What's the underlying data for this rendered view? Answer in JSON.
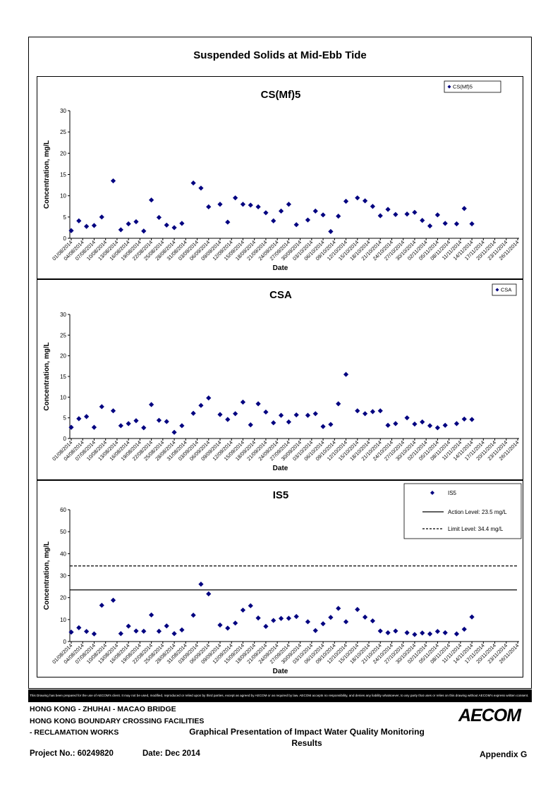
{
  "page": {
    "main_title": "Suspended Solids at Mid-Ebb Tide",
    "disclaimer": "This Drawing has been prepared for the use of AECOM's client. It may not be used, modified, reproduced or relied upon by third parties, except as agreed by AECOM or as required by law. AECOM accepts no responsibility, and denies any liability whatsoever, to any party that uses or relies on this drawing without AECOM's express written consent.",
    "footer": {
      "line1": "HONG KONG - ZHUHAI - MACAO BRIDGE",
      "line2": "HONG KONG BOUNDARY CROSSING FACILITIES",
      "line3": "- RECLAMATION WORKS",
      "title": "Graphical Presentation of Impact Water Quality Monitoring Results",
      "project": "Project No.: 60249820",
      "date": "Date: Dec 2014",
      "appendix": "Appendix G",
      "logo": "AECOM"
    }
  },
  "chart_data": [
    {
      "type": "scatter",
      "title": "CS(Mf)5",
      "xlabel": "Date",
      "ylabel": "Concentration, mg/L",
      "ylim": [
        0,
        30
      ],
      "yticks": [
        0,
        5,
        10,
        15,
        20,
        25,
        30
      ],
      "x_tick_labels": [
        "01/08/2014",
        "04/08/2014",
        "07/08/2014",
        "10/08/2014",
        "13/08/2014",
        "16/08/2014",
        "19/08/2014",
        "22/08/2014",
        "25/08/2014",
        "28/08/2014",
        "31/08/2014",
        "03/09/2014",
        "06/09/2014",
        "09/09/2014",
        "12/09/2014",
        "15/09/2014",
        "18/09/2014",
        "21/09/2014",
        "24/09/2014",
        "27/09/2014",
        "30/09/2014",
        "03/10/2014",
        "06/10/2014",
        "09/10/2014",
        "12/10/2014",
        "15/10/2014",
        "18/10/2014",
        "21/10/2014",
        "24/10/2014",
        "27/10/2014",
        "30/10/2014",
        "02/11/2014",
        "05/11/2014",
        "08/11/2014",
        "11/11/2014",
        "14/11/2014",
        "17/11/2014",
        "20/11/2014",
        "23/11/2014",
        "26/11/2014"
      ],
      "color": "#000080",
      "legend_position": "top-right",
      "series": [
        {
          "name": "CS(Mf)5",
          "marker": "diamond",
          "points": [
            [
              "01/08/2014",
              1.8
            ],
            [
              "03/08/2014",
              4.1
            ],
            [
              "05/08/2014",
              2.8
            ],
            [
              "07/08/2014",
              3.0
            ],
            [
              "09/08/2014",
              5.0
            ],
            [
              "12/08/2014",
              13.5
            ],
            [
              "14/08/2014",
              2.0
            ],
            [
              "16/08/2014",
              3.4
            ],
            [
              "18/08/2014",
              3.9
            ],
            [
              "20/08/2014",
              1.7
            ],
            [
              "22/08/2014",
              9.0
            ],
            [
              "24/08/2014",
              4.9
            ],
            [
              "26/08/2014",
              3.1
            ],
            [
              "28/08/2014",
              2.5
            ],
            [
              "30/08/2014",
              3.5
            ],
            [
              "02/09/2014",
              13.0
            ],
            [
              "04/09/2014",
              11.8
            ],
            [
              "06/09/2014",
              7.4
            ],
            [
              "09/09/2014",
              8.0
            ],
            [
              "11/09/2014",
              3.8
            ],
            [
              "13/09/2014",
              9.5
            ],
            [
              "15/09/2014",
              8.0
            ],
            [
              "17/09/2014",
              7.8
            ],
            [
              "19/09/2014",
              7.4
            ],
            [
              "21/09/2014",
              6.0
            ],
            [
              "23/09/2014",
              4.1
            ],
            [
              "25/09/2014",
              6.4
            ],
            [
              "27/09/2014",
              8.0
            ],
            [
              "29/09/2014",
              3.2
            ],
            [
              "02/10/2014",
              4.3
            ],
            [
              "04/10/2014",
              6.4
            ],
            [
              "06/10/2014",
              5.5
            ],
            [
              "08/10/2014",
              1.6
            ],
            [
              "10/10/2014",
              5.2
            ],
            [
              "12/10/2014",
              8.7
            ],
            [
              "15/10/2014",
              9.5
            ],
            [
              "17/10/2014",
              8.8
            ],
            [
              "19/10/2014",
              7.5
            ],
            [
              "21/10/2014",
              5.3
            ],
            [
              "23/10/2014",
              6.8
            ],
            [
              "25/10/2014",
              5.6
            ],
            [
              "28/10/2014",
              5.7
            ],
            [
              "30/10/2014",
              6.1
            ],
            [
              "01/11/2014",
              4.2
            ],
            [
              "03/11/2014",
              2.9
            ],
            [
              "05/11/2014",
              5.5
            ],
            [
              "07/11/2014",
              3.5
            ],
            [
              "10/11/2014",
              3.4
            ],
            [
              "12/11/2014",
              7.0
            ],
            [
              "14/11/2014",
              3.4
            ]
          ]
        }
      ]
    },
    {
      "type": "scatter",
      "title": "CSA",
      "xlabel": "Date",
      "ylabel": "Concentration, mg/L",
      "ylim": [
        0,
        30
      ],
      "yticks": [
        0,
        5,
        10,
        15,
        20,
        25,
        30
      ],
      "x_tick_labels": [
        "01/08/2014",
        "04/08/2014",
        "07/08/2014",
        "10/08/2014",
        "13/08/2014",
        "16/08/2014",
        "19/08/2014",
        "22/08/2014",
        "25/08/2014",
        "28/08/2014",
        "31/08/2014",
        "03/09/2014",
        "06/09/2014",
        "09/09/2014",
        "12/09/2014",
        "15/09/2014",
        "18/09/2014",
        "21/09/2014",
        "24/09/2014",
        "27/09/2014",
        "30/09/2014",
        "03/10/2014",
        "06/10/2014",
        "09/10/2014",
        "12/10/2014",
        "15/10/2014",
        "18/10/2014",
        "21/10/2014",
        "24/10/2014",
        "27/10/2014",
        "30/10/2014",
        "02/11/2014",
        "05/11/2014",
        "08/11/2014",
        "11/11/2014",
        "14/11/2014",
        "17/11/2014",
        "20/11/2014",
        "23/11/2014",
        "26/11/2014"
      ],
      "color": "#000080",
      "legend_position": "top-right",
      "series": [
        {
          "name": "CSA",
          "marker": "diamond",
          "points": [
            [
              "01/08/2014",
              2.7
            ],
            [
              "03/08/2014",
              4.8
            ],
            [
              "05/08/2014",
              5.3
            ],
            [
              "07/08/2014",
              2.7
            ],
            [
              "09/08/2014",
              7.7
            ],
            [
              "12/08/2014",
              6.7
            ],
            [
              "14/08/2014",
              3.1
            ],
            [
              "16/08/2014",
              3.6
            ],
            [
              "18/08/2014",
              4.3
            ],
            [
              "20/08/2014",
              2.6
            ],
            [
              "22/08/2014",
              8.2
            ],
            [
              "24/08/2014",
              4.4
            ],
            [
              "26/08/2014",
              4.1
            ],
            [
              "28/08/2014",
              1.5
            ],
            [
              "30/08/2014",
              3.1
            ],
            [
              "02/09/2014",
              6.1
            ],
            [
              "04/09/2014",
              8.0
            ],
            [
              "06/09/2014",
              9.8
            ],
            [
              "09/09/2014",
              5.8
            ],
            [
              "11/09/2014",
              4.6
            ],
            [
              "13/09/2014",
              6.0
            ],
            [
              "15/09/2014",
              8.8
            ],
            [
              "17/09/2014",
              3.3
            ],
            [
              "19/09/2014",
              8.4
            ],
            [
              "21/09/2014",
              6.4
            ],
            [
              "23/09/2014",
              3.8
            ],
            [
              "25/09/2014",
              5.6
            ],
            [
              "27/09/2014",
              4.0
            ],
            [
              "29/09/2014",
              5.7
            ],
            [
              "02/10/2014",
              5.6
            ],
            [
              "04/10/2014",
              6.0
            ],
            [
              "06/10/2014",
              2.9
            ],
            [
              "08/10/2014",
              3.4
            ],
            [
              "10/10/2014",
              8.4
            ],
            [
              "12/10/2014",
              15.5
            ],
            [
              "15/10/2014",
              6.7
            ],
            [
              "17/10/2014",
              6.0
            ],
            [
              "19/10/2014",
              6.5
            ],
            [
              "21/10/2014",
              6.7
            ],
            [
              "23/10/2014",
              3.2
            ],
            [
              "25/10/2014",
              3.6
            ],
            [
              "28/10/2014",
              5.0
            ],
            [
              "30/10/2014",
              3.5
            ],
            [
              "01/11/2014",
              4.0
            ],
            [
              "03/11/2014",
              3.1
            ],
            [
              "05/11/2014",
              2.6
            ],
            [
              "07/11/2014",
              3.2
            ],
            [
              "10/11/2014",
              3.6
            ],
            [
              "12/11/2014",
              4.7
            ],
            [
              "14/11/2014",
              4.6
            ]
          ]
        }
      ]
    },
    {
      "type": "scatter",
      "title": "IS5",
      "xlabel": "Date",
      "ylabel": "Concentration, mg/L",
      "ylim": [
        0,
        60
      ],
      "yticks": [
        0,
        10,
        20,
        30,
        40,
        50,
        60
      ],
      "x_tick_labels": [
        "01/08/2014",
        "04/08/2014",
        "07/08/2014",
        "10/08/2014",
        "13/08/2014",
        "16/08/2014",
        "19/08/2014",
        "22/08/2014",
        "25/08/2014",
        "28/08/2014",
        "31/08/2014",
        "03/09/2014",
        "06/09/2014",
        "09/09/2014",
        "12/09/2014",
        "15/09/2014",
        "18/09/2014",
        "21/09/2014",
        "24/09/2014",
        "27/09/2014",
        "30/09/2014",
        "03/10/2014",
        "06/10/2014",
        "09/10/2014",
        "12/10/2014",
        "15/10/2014",
        "18/10/2014",
        "21/10/2014",
        "24/10/2014",
        "27/10/2014",
        "30/10/2014",
        "02/11/2014",
        "05/11/2014",
        "08/11/2014",
        "11/11/2014",
        "14/11/2014",
        "17/11/2014",
        "20/11/2014",
        "23/11/2014",
        "26/11/2014"
      ],
      "color": "#000080",
      "legend_position": "top-right",
      "reference_lines": [
        {
          "label": "Action Level: 23.5 mg/L",
          "value": 23.5,
          "style": "solid"
        },
        {
          "label": "Limit Level: 34.4 mg/L",
          "value": 34.4,
          "style": "dashed"
        }
      ],
      "series": [
        {
          "name": "IS5",
          "marker": "diamond",
          "points": [
            [
              "01/08/2014",
              4.3
            ],
            [
              "03/08/2014",
              6.3
            ],
            [
              "05/08/2014",
              4.6
            ],
            [
              "07/08/2014",
              3.5
            ],
            [
              "09/08/2014",
              16.5
            ],
            [
              "12/08/2014",
              18.8
            ],
            [
              "14/08/2014",
              3.6
            ],
            [
              "16/08/2014",
              7.0
            ],
            [
              "18/08/2014",
              4.8
            ],
            [
              "20/08/2014",
              4.7
            ],
            [
              "22/08/2014",
              12.1
            ],
            [
              "24/08/2014",
              4.7
            ],
            [
              "26/08/2014",
              7.1
            ],
            [
              "28/08/2014",
              3.6
            ],
            [
              "30/08/2014",
              5.3
            ],
            [
              "02/09/2014",
              12.0
            ],
            [
              "04/09/2014",
              26.1
            ],
            [
              "06/09/2014",
              21.7
            ],
            [
              "09/09/2014",
              7.5
            ],
            [
              "11/09/2014",
              6.1
            ],
            [
              "13/09/2014",
              8.4
            ],
            [
              "15/09/2014",
              14.3
            ],
            [
              "17/09/2014",
              16.3
            ],
            [
              "19/09/2014",
              10.7
            ],
            [
              "21/09/2014",
              6.9
            ],
            [
              "23/09/2014",
              9.6
            ],
            [
              "25/09/2014",
              10.5
            ],
            [
              "27/09/2014",
              10.6
            ],
            [
              "29/09/2014",
              11.4
            ],
            [
              "02/10/2014",
              9.0
            ],
            [
              "04/10/2014",
              5.0
            ],
            [
              "06/10/2014",
              8.1
            ],
            [
              "08/10/2014",
              11.0
            ],
            [
              "10/10/2014",
              15.1
            ],
            [
              "12/10/2014",
              9.0
            ],
            [
              "15/10/2014",
              14.6
            ],
            [
              "17/10/2014",
              11.1
            ],
            [
              "19/10/2014",
              9.4
            ],
            [
              "21/10/2014",
              4.8
            ],
            [
              "23/10/2014",
              4.0
            ],
            [
              "25/10/2014",
              4.8
            ],
            [
              "28/10/2014",
              4.0
            ],
            [
              "30/10/2014",
              3.2
            ],
            [
              "01/11/2014",
              3.9
            ],
            [
              "03/11/2014",
              3.5
            ],
            [
              "05/11/2014",
              4.6
            ],
            [
              "07/11/2014",
              4.0
            ],
            [
              "10/11/2014",
              3.5
            ],
            [
              "12/11/2014",
              5.6
            ],
            [
              "14/11/2014",
              11.2
            ]
          ]
        }
      ]
    }
  ]
}
